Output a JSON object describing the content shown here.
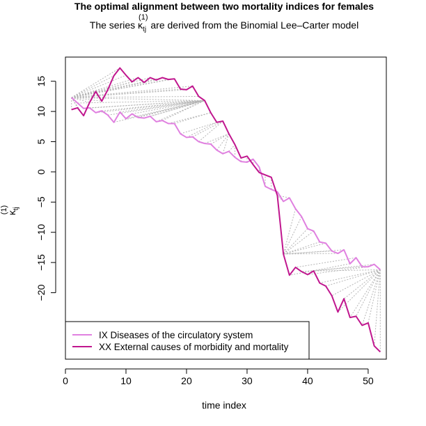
{
  "chart_data": {
    "type": "line",
    "title": "The optimal alignment between two mortality indices for females",
    "subtitle": {
      "prefix": "The series ",
      "symbol": "κ",
      "subscript": "tj",
      "superscript": "(1)",
      "suffix": " are derived from the Binomial Lee–Carter model"
    },
    "xlabel": "time index",
    "ylabel": {
      "symbol": "κ",
      "subscript": "tj",
      "superscript": "(1)"
    },
    "xlim": [
      0,
      53
    ],
    "ylim": [
      -31,
      19
    ],
    "x_ticks": [
      0,
      10,
      20,
      30,
      40,
      50
    ],
    "x_tick_labels": [
      "0",
      "10",
      "20",
      "30",
      "40",
      "50"
    ],
    "y_ticks": [
      15,
      10,
      5,
      0,
      -5,
      -10,
      -15,
      -20
    ],
    "y_tick_labels": [
      "15",
      "10",
      "5",
      "0",
      "−5",
      "−10",
      "−15",
      "−20"
    ],
    "legend_position": "bottom-left",
    "grid": false,
    "x": [
      1,
      2,
      3,
      4,
      5,
      6,
      7,
      8,
      9,
      10,
      11,
      12,
      13,
      14,
      15,
      16,
      17,
      18,
      19,
      20,
      21,
      22,
      23,
      24,
      25,
      26,
      27,
      28,
      29,
      30,
      31,
      32,
      33,
      34,
      35,
      36,
      37,
      38,
      39,
      40,
      41,
      42,
      43,
      44,
      45,
      46,
      47,
      48,
      49,
      50,
      51,
      52
    ],
    "series": [
      {
        "name": "IX Diseases of the circulatory system",
        "color": "#e080e0",
        "values": [
          12.3,
          11.4,
          10.5,
          10.6,
          9.8,
          10.1,
          9.4,
          8.2,
          9.9,
          8.8,
          9.6,
          9.0,
          8.9,
          9.2,
          8.3,
          8.5,
          8.0,
          8.0,
          6.3,
          5.7,
          5.8,
          5.0,
          4.7,
          4.6,
          3.6,
          3.0,
          3.4,
          2.4,
          1.7,
          1.6,
          2.1,
          0.8,
          -2.4,
          -2.9,
          -3.3,
          -4.9,
          -4.3,
          -6.1,
          -7.4,
          -9.4,
          -9.8,
          -11.6,
          -11.8,
          -13.1,
          -13.5,
          -12.9,
          -15.2,
          -14.2,
          -15.7,
          -15.7,
          -15.3,
          -16.2
        ]
      },
      {
        "name": "XX External causes of morbidity and mortality",
        "color": "#c0168e",
        "values": [
          10.3,
          10.6,
          9.3,
          11.5,
          13.3,
          11.7,
          13.6,
          15.9,
          17.2,
          16.0,
          14.9,
          15.6,
          14.8,
          15.6,
          15.2,
          15.6,
          15.3,
          15.4,
          13.7,
          13.6,
          14.2,
          12.5,
          11.8,
          9.8,
          8.2,
          8.4,
          6.3,
          4.5,
          2.3,
          2.6,
          1.2,
          -0.1,
          -0.5,
          -0.9,
          -3.9,
          -13.6,
          -17.1,
          -15.8,
          -16.5,
          -17.0,
          -16.4,
          -18.4,
          -18.9,
          -20.5,
          -23.2,
          -21.0,
          -24.1,
          -23.9,
          -25.4,
          -25.0,
          -28.8,
          -29.8
        ]
      }
    ],
    "alignment": {
      "color": "#b5b5b5",
      "style": "dotted",
      "pairs": [
        [
          1,
          1
        ],
        [
          1,
          2
        ],
        [
          1,
          3
        ],
        [
          1,
          4
        ],
        [
          1,
          5
        ],
        [
          1,
          6
        ],
        [
          1,
          7
        ],
        [
          1,
          8
        ],
        [
          1,
          9
        ],
        [
          1,
          10
        ],
        [
          1,
          11
        ],
        [
          1,
          12
        ],
        [
          1,
          13
        ],
        [
          1,
          14
        ],
        [
          1,
          15
        ],
        [
          1,
          16
        ],
        [
          1,
          17
        ],
        [
          1,
          18
        ],
        [
          1,
          19
        ],
        [
          1,
          20
        ],
        [
          1,
          21
        ],
        [
          1,
          22
        ],
        [
          1,
          23
        ],
        [
          2,
          23
        ],
        [
          3,
          23
        ],
        [
          4,
          23
        ],
        [
          5,
          23
        ],
        [
          6,
          23
        ],
        [
          7,
          23
        ],
        [
          8,
          23
        ],
        [
          9,
          23
        ],
        [
          10,
          23
        ],
        [
          11,
          23
        ],
        [
          12,
          23
        ],
        [
          13,
          23
        ],
        [
          14,
          23
        ],
        [
          15,
          23
        ],
        [
          16,
          23
        ],
        [
          17,
          24
        ],
        [
          18,
          24
        ],
        [
          19,
          25
        ],
        [
          20,
          25
        ],
        [
          21,
          26
        ],
        [
          22,
          26
        ],
        [
          23,
          27
        ],
        [
          24,
          27
        ],
        [
          25,
          27
        ],
        [
          26,
          27
        ],
        [
          27,
          28
        ],
        [
          28,
          28
        ],
        [
          29,
          29
        ],
        [
          30,
          30
        ],
        [
          31,
          31
        ],
        [
          32,
          32
        ],
        [
          33,
          33
        ],
        [
          34,
          34
        ],
        [
          35,
          35
        ],
        [
          36,
          35
        ],
        [
          37,
          35
        ],
        [
          38,
          36
        ],
        [
          39,
          36
        ],
        [
          40,
          36
        ],
        [
          41,
          36
        ],
        [
          42,
          36
        ],
        [
          43,
          36
        ],
        [
          44,
          36
        ],
        [
          45,
          36
        ],
        [
          46,
          36
        ],
        [
          47,
          37
        ],
        [
          48,
          38
        ],
        [
          49,
          39
        ],
        [
          50,
          40
        ],
        [
          51,
          41
        ],
        [
          52,
          41
        ],
        [
          52,
          42
        ],
        [
          52,
          43
        ],
        [
          52,
          44
        ],
        [
          52,
          45
        ],
        [
          52,
          46
        ],
        [
          52,
          47
        ],
        [
          52,
          48
        ],
        [
          52,
          49
        ],
        [
          52,
          50
        ],
        [
          52,
          51
        ],
        [
          52,
          52
        ]
      ]
    }
  }
}
